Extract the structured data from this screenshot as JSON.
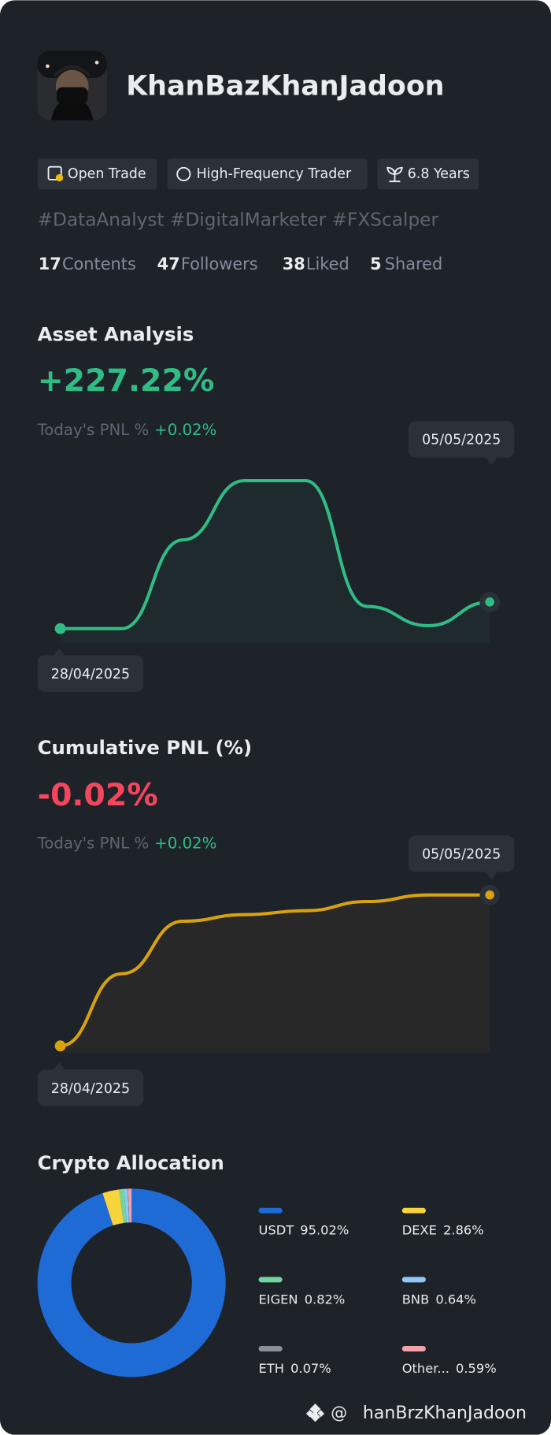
{
  "profile": {
    "name": "KhanBazKhanJadoon",
    "tags": [
      "Open Trade",
      "High-Frequency Trader",
      "6.8 Years"
    ],
    "hashtags": "#DataAnalyst #DigitalMarketer #FXScalper",
    "stats": [
      {
        "value": 17,
        "label": "Contents"
      },
      {
        "value": 47,
        "label": "Followers"
      },
      {
        "value": 38,
        "label": "Liked"
      },
      {
        "value": 5,
        "label": "Shared"
      }
    ]
  },
  "chart_data": [
    {
      "type": "line",
      "title": "Asset Analysis",
      "headline": "+227.22%",
      "headline_color": "#2ebd85",
      "today_label": "Today's PNL %",
      "today_value": "+0.02%",
      "categories": [
        "28/04/2025",
        null,
        null,
        null,
        null,
        null,
        null,
        "05/05/2025"
      ],
      "values": [
        0,
        0,
        600,
        1000,
        1000,
        150,
        20,
        180
      ],
      "ylim": [
        -100,
        1100
      ],
      "color": "#2ebd85"
    },
    {
      "type": "line",
      "title": "Cumulative PNL (%)",
      "headline": "-0.02%",
      "headline_color": "#f6465d",
      "today_label": "Today's PNL %",
      "today_value": "+0.02%",
      "categories": [
        "28/04/2025",
        null,
        null,
        null,
        null,
        null,
        null,
        "05/05/2025"
      ],
      "values": [
        0,
        55,
        95,
        100,
        103,
        110,
        115,
        115
      ],
      "ylim": [
        -5,
        120
      ],
      "color": "#d9a20b"
    },
    {
      "type": "pie",
      "title": "Crypto Allocation",
      "categories": [
        "USDT",
        "DEXE",
        "EIGEN",
        "BNB",
        "ETH",
        "Other..."
      ],
      "values": [
        95.02,
        2.86,
        0.82,
        0.64,
        0.07,
        0.59
      ],
      "value_labels": [
        "95.02%",
        "2.86%",
        "0.82%",
        "0.64%",
        "0.07%",
        "0.59%"
      ],
      "colors": [
        "#1f6bd6",
        "#f7d33c",
        "#6fd6a2",
        "#8ec8f6",
        "#8a8f99",
        "#f2a1ab"
      ]
    }
  ],
  "footer": {
    "at": "@",
    "handle": "hanBrzKhanJadoon"
  }
}
